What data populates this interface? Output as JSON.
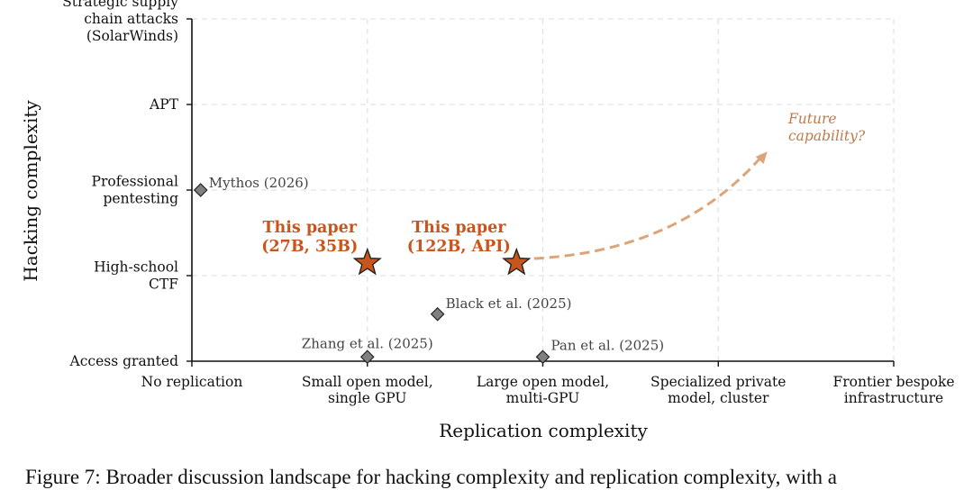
{
  "chart_data": {
    "type": "scatter",
    "xlabel": "Replication complexity",
    "ylabel": "Hacking complexity",
    "x_categories": [
      [
        "No replication"
      ],
      [
        "Small open model,",
        "single GPU"
      ],
      [
        "Large open model,",
        "multi-GPU"
      ],
      [
        "Specialized private",
        "model, cluster"
      ],
      [
        "Frontier bespoke",
        "infrastructure"
      ]
    ],
    "y_categories": [
      [
        "Access granted"
      ],
      [
        "High-school",
        "CTF"
      ],
      [
        "Professional",
        "pentesting"
      ],
      [
        "APT"
      ],
      [
        "Strategic supply",
        "chain attacks",
        "(SolarWinds)"
      ]
    ],
    "xlim": [
      0,
      4
    ],
    "ylim": [
      0,
      4
    ],
    "grid": true,
    "points": [
      {
        "label": "Mythos (2026)",
        "x": 0.05,
        "y": 2.0,
        "marker": "diamond",
        "color": "#808080"
      },
      {
        "label": "Black et al. (2025)",
        "x": 1.4,
        "y": 0.55,
        "marker": "diamond",
        "color": "#808080"
      },
      {
        "label": "Zhang et al. (2025)",
        "x": 1.0,
        "y": 0.05,
        "marker": "diamond",
        "color": "#808080"
      },
      {
        "label": "Pan et al. (2025)",
        "x": 2.0,
        "y": 0.05,
        "marker": "diamond",
        "color": "#808080"
      },
      {
        "label": [
          "This paper",
          "(27B, 35B)"
        ],
        "x": 1.0,
        "y": 1.15,
        "marker": "star",
        "color": "#c8561c"
      },
      {
        "label": [
          "This paper",
          "(122B, API)"
        ],
        "x": 1.85,
        "y": 1.15,
        "marker": "star",
        "color": "#c8561c"
      }
    ],
    "arrow": {
      "label": [
        "Future",
        "capability?"
      ],
      "from": [
        1.95,
        1.2
      ],
      "to": [
        3.28,
        2.45
      ],
      "color": "#dda47a"
    }
  },
  "caption": "Figure 7: Broader discussion landscape for hacking complexity and replication complexity, with a"
}
